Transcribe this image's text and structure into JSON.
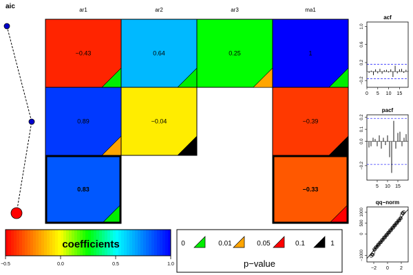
{
  "aic_panel": {
    "title": "aic",
    "values": [
      3,
      2,
      1
    ],
    "best_index": 2
  },
  "matrix": {
    "columns": [
      "ar1",
      "ar2",
      "ar3",
      "ma1"
    ],
    "rows": [
      [
        {
          "v": -0.43,
          "p": "0.01",
          "label": "−0.43"
        },
        {
          "v": 0.64,
          "p": "0.01",
          "label": "0.64"
        },
        {
          "v": 0.25,
          "p": "0.05",
          "label": "0.25"
        },
        {
          "v": 1.0,
          "p": "0.01",
          "label": "1"
        }
      ],
      [
        {
          "v": 0.89,
          "p": "0.05",
          "label": "0.89"
        },
        {
          "v": -0.04,
          "p": "1",
          "label": "−0.04"
        },
        null,
        {
          "v": -0.39,
          "p": "1",
          "label": "−0.39"
        }
      ],
      [
        {
          "v": 0.83,
          "p": "0.01",
          "label": "0.83",
          "bold": true
        },
        null,
        null,
        {
          "v": -0.33,
          "p": "0.1",
          "label": "−0.33",
          "bold": true
        }
      ]
    ],
    "highlight_row": 2
  },
  "colorbar": {
    "title": "coefficients",
    "ticks": [
      {
        "v": -0.5,
        "label": "−0.5"
      },
      {
        "v": 0.0,
        "label": "0.0"
      },
      {
        "v": 0.5,
        "label": "0.5"
      },
      {
        "v": 1.0,
        "label": "1.0"
      }
    ],
    "range": [
      -0.5,
      1.0
    ]
  },
  "pvalue_legend": {
    "title": "p−value",
    "breaks": [
      "0",
      "0.01",
      "0.05",
      "0.1",
      "1"
    ],
    "colors": [
      "#00ee00",
      "#ffa500",
      "#ff0000",
      "#000000"
    ]
  },
  "chart_data": [
    {
      "type": "bar",
      "title": "acf",
      "xlabel": "",
      "ylabel": "",
      "x_ticks": [
        "0",
        "5",
        "10",
        "15"
      ],
      "y_ticks": [
        "−0.2",
        "0.2",
        "0.6",
        "1.0"
      ],
      "lags": [
        0,
        1,
        2,
        3,
        4,
        5,
        6,
        7,
        8,
        9,
        10,
        11,
        12,
        13,
        14,
        15,
        16,
        17,
        18,
        19
      ],
      "values": [
        1.0,
        -0.03,
        0.02,
        -0.08,
        0.05,
        -0.04,
        0.06,
        -0.05,
        0.03,
        0.04,
        -0.02,
        0.05,
        -0.12,
        0.13,
        -0.04,
        0.05,
        0.06,
        -0.03,
        0.04,
        0.02
      ],
      "conf_band": 0.16,
      "xlim": [
        0,
        19
      ],
      "ylim": [
        -0.35,
        1.1
      ]
    },
    {
      "type": "bar",
      "title": "pacf",
      "xlabel": "",
      "ylabel": "",
      "x_ticks": [
        "5",
        "10",
        "15"
      ],
      "y_ticks": [
        "−0.2",
        "0.0",
        "0.1",
        "0.2"
      ],
      "lags": [
        1,
        2,
        3,
        4,
        5,
        6,
        7,
        8,
        9,
        10,
        11,
        12,
        13,
        14,
        15,
        16,
        17,
        18,
        19
      ],
      "values": [
        -0.05,
        -0.04,
        0.03,
        0.02,
        -0.04,
        0.05,
        -0.06,
        0.03,
        -0.03,
        0.05,
        -0.13,
        -0.26,
        0.17,
        -0.06,
        0.07,
        0.08,
        -0.04,
        0.03,
        0.06
      ],
      "conf_band": 0.19,
      "xlim": [
        0,
        20
      ],
      "ylim": [
        -0.32,
        0.22
      ]
    },
    {
      "type": "scatter",
      "title": "qq−norm",
      "xlabel": "",
      "ylabel": "",
      "x_ticks": [
        "−2",
        "0",
        "2"
      ],
      "y_ticks": [
        "−1000",
        "0",
        "500",
        "1000"
      ],
      "xlim": [
        -3.0,
        3.0
      ],
      "ylim": [
        -1300,
        1250
      ],
      "line": {
        "slope": 380,
        "intercept": 0
      }
    }
  ]
}
